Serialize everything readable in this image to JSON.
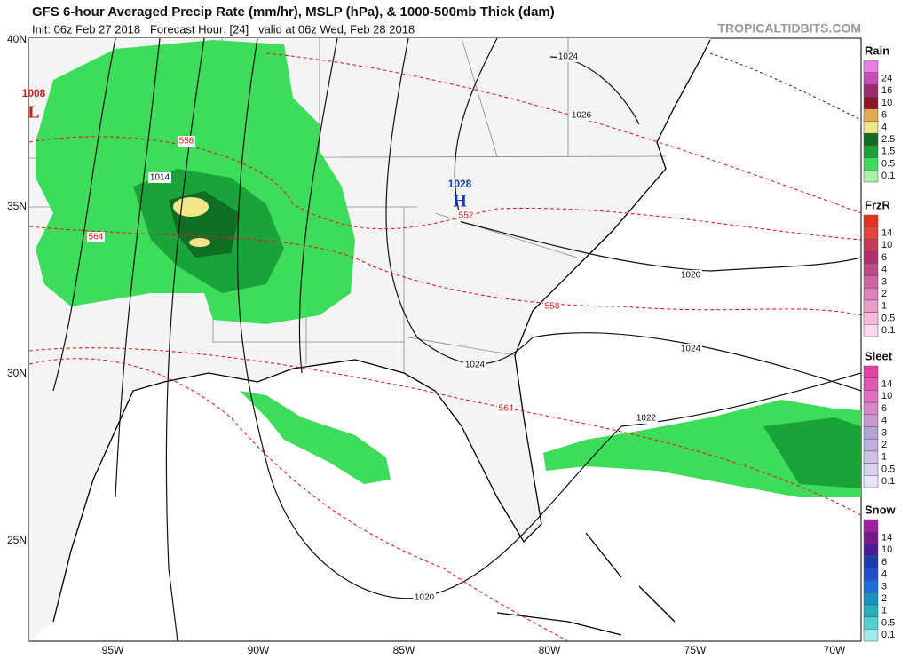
{
  "header": {
    "title": "GFS 6-hour Averaged Precip Rate (mm/hr), MSLP (hPa), & 1000-500mb Thick (dam)",
    "subtitle": "Init: 06z Feb 27 2018   Forecast Hour: [24]   valid at 06z Wed, Feb 28 2018",
    "watermark": "TROPICALTIDBITS.COM"
  },
  "map": {
    "lat_labels": [
      "40N",
      "35N",
      "30N",
      "25N"
    ],
    "lon_labels": [
      "95W",
      "90W",
      "85W",
      "80W",
      "75W",
      "70W"
    ],
    "pressure_centers": [
      {
        "value": "1008",
        "symbol": "L"
      },
      {
        "value": "1028",
        "symbol": "H"
      }
    ],
    "isobar_labels": [
      "1014",
      "1024",
      "1026",
      "1026",
      "1024",
      "1024",
      "1022",
      "1020"
    ],
    "thickness_labels": [
      "558",
      "564",
      "552",
      "558",
      "564"
    ]
  },
  "legend": [
    {
      "title": "Rain",
      "labels": [
        "24",
        "16",
        "10",
        "6",
        "4",
        "2.5",
        "1.5",
        "0.5",
        "0.1"
      ],
      "colors": [
        "#e87ee8",
        "#c84cb8",
        "#a0286e",
        "#8c1428",
        "#e6a850",
        "#f2e68a",
        "#0f6e23",
        "#19a33a",
        "#3ddc5a",
        "#a8f0a8"
      ]
    },
    {
      "title": "FrzR",
      "labels": [
        "14",
        "10",
        "6",
        "4",
        "3",
        "2",
        "1",
        "0.5",
        "0.1"
      ],
      "colors": [
        "#e83020",
        "#e0443a",
        "#c83a5c",
        "#b0306c",
        "#c04a88",
        "#d064a0",
        "#e080b8",
        "#ec9cc8",
        "#f4b8d8",
        "#fcd8ec"
      ]
    },
    {
      "title": "Sleet",
      "labels": [
        "14",
        "10",
        "6",
        "4",
        "3",
        "2",
        "1",
        "0.5",
        "0.1"
      ],
      "colors": [
        "#e040a8",
        "#e058b4",
        "#e070c0",
        "#d884c8",
        "#c898d0",
        "#b8a0d8",
        "#c0b0e0",
        "#d0c0e8",
        "#dcd0f0",
        "#ece4f8"
      ]
    },
    {
      "title": "Snow",
      "labels": [
        "14",
        "10",
        "6",
        "4",
        "3",
        "2",
        "1",
        "0.5",
        "0.1"
      ],
      "colors": [
        "#a020a0",
        "#7a1890",
        "#4a1a98",
        "#1a3ab0",
        "#2050c8",
        "#1870d8",
        "#1890c0",
        "#20b0c0",
        "#50d0d0",
        "#a0eaea"
      ]
    }
  ]
}
